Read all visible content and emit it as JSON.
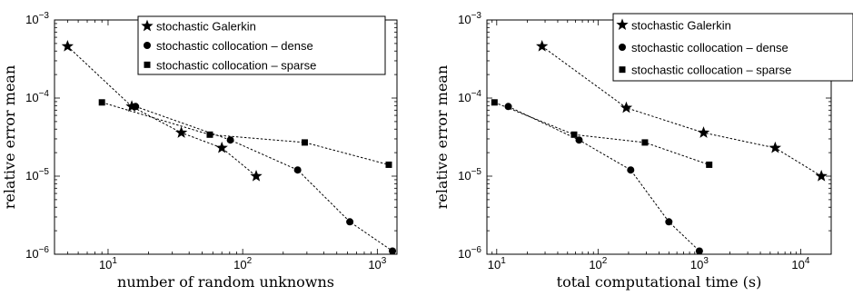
{
  "chart_data": [
    {
      "type": "line",
      "xlabel": "number of random unknowns",
      "ylabel": "relative error mean",
      "xscale": "log",
      "yscale": "log",
      "xlim": [
        4,
        1400
      ],
      "ylim": [
        1e-06,
        0.001
      ],
      "xticks": [
        {
          "value": 10,
          "label": "10",
          "sup": "1"
        },
        {
          "value": 100,
          "label": "10",
          "sup": "2"
        },
        {
          "value": 1000,
          "label": "10",
          "sup": "3"
        }
      ],
      "yticks": [
        {
          "value": 1e-06,
          "label": "10",
          "sup": "−6"
        },
        {
          "value": 1e-05,
          "label": "10",
          "sup": "−5"
        },
        {
          "value": 0.0001,
          "label": "10",
          "sup": "−4"
        },
        {
          "value": 0.001,
          "label": "10",
          "sup": "−3"
        }
      ],
      "grid": false,
      "legend_position": "top-right",
      "series": [
        {
          "name": "stochastic Galerkin",
          "marker": "star",
          "x": [
            5,
            15,
            35,
            70,
            126
          ],
          "y": [
            0.00046,
            7.8e-05,
            3.6e-05,
            2.3e-05,
            1e-05
          ]
        },
        {
          "name": "stochastic collocation – dense",
          "marker": "circle",
          "x": [
            16,
            81,
            256,
            625,
            1296
          ],
          "y": [
            7.8e-05,
            2.9e-05,
            1.2e-05,
            2.6e-06,
            1.1e-06
          ]
        },
        {
          "name": "stochastic collocation – sparse",
          "marker": "square",
          "x": [
            9,
            57,
            289,
            1217
          ],
          "y": [
            8.8e-05,
            3.4e-05,
            2.7e-05,
            1.4e-05
          ]
        }
      ]
    },
    {
      "type": "line",
      "xlabel": "total computational time (s)",
      "ylabel": "relative error mean",
      "xscale": "log",
      "yscale": "log",
      "xlim": [
        8,
        20000
      ],
      "ylim": [
        1e-06,
        0.001
      ],
      "xticks": [
        {
          "value": 10,
          "label": "10",
          "sup": "1"
        },
        {
          "value": 100,
          "label": "10",
          "sup": "2"
        },
        {
          "value": 1000,
          "label": "10",
          "sup": "3"
        },
        {
          "value": 10000,
          "label": "10",
          "sup": "4"
        }
      ],
      "yticks": [
        {
          "value": 1e-06,
          "label": "10",
          "sup": "−6"
        },
        {
          "value": 1e-05,
          "label": "10",
          "sup": "−5"
        },
        {
          "value": 0.0001,
          "label": "10",
          "sup": "−4"
        },
        {
          "value": 0.001,
          "label": "10",
          "sup": "−3"
        }
      ],
      "grid": false,
      "legend_position": "top-right",
      "series": [
        {
          "name": "stochastic Galerkin",
          "marker": "star",
          "x": [
            28,
            190,
            1100,
            5600,
            16000
          ],
          "y": [
            0.00046,
            7.5e-05,
            3.6e-05,
            2.3e-05,
            1e-05
          ]
        },
        {
          "name": "stochastic collocation – dense",
          "marker": "circle",
          "x": [
            13,
            65,
            210,
            500,
            1000
          ],
          "y": [
            7.8e-05,
            2.9e-05,
            1.2e-05,
            2.6e-06,
            1.1e-06
          ]
        },
        {
          "name": "stochastic collocation – sparse",
          "marker": "square",
          "x": [
            9.5,
            58,
            290,
            1250
          ],
          "y": [
            8.8e-05,
            3.4e-05,
            2.7e-05,
            1.4e-05
          ]
        }
      ]
    }
  ]
}
